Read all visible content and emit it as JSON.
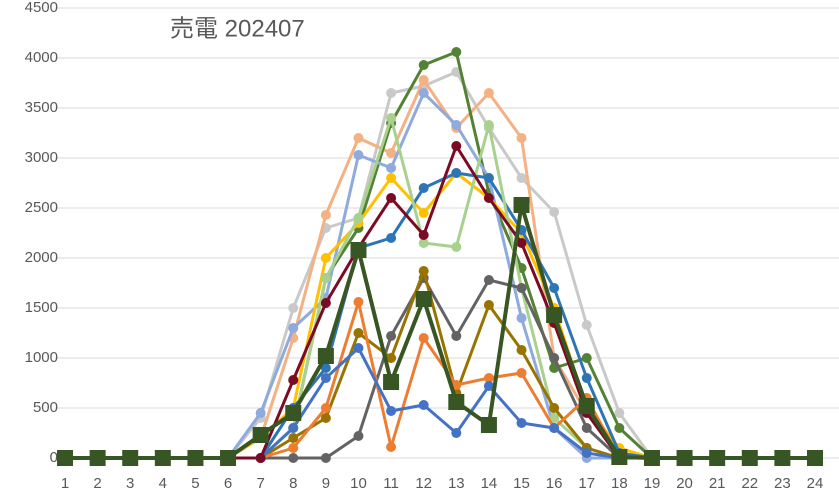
{
  "chart_data": {
    "type": "line",
    "title": "売電 202407",
    "categories": [
      "1",
      "2",
      "3",
      "4",
      "5",
      "6",
      "7",
      "8",
      "9",
      "10",
      "11",
      "12",
      "13",
      "14",
      "15",
      "16",
      "17",
      "18",
      "19",
      "20",
      "21",
      "22",
      "23",
      "24"
    ],
    "ylim": [
      0,
      4500
    ],
    "yticks": [
      0,
      500,
      1000,
      1500,
      2000,
      2500,
      3000,
      3500,
      4000,
      4500
    ],
    "grid": true,
    "series": [
      {
        "color": "#c9c9c9",
        "values": [
          0,
          0,
          0,
          0,
          0,
          0,
          400,
          1500,
          2300,
          2400,
          3650,
          3720,
          3860,
          3300,
          2800,
          2460,
          1330,
          450,
          0,
          0,
          0,
          0,
          0,
          0
        ]
      },
      {
        "color": "#f4b183",
        "values": [
          0,
          0,
          0,
          0,
          0,
          0,
          200,
          1200,
          2430,
          3200,
          3050,
          3780,
          3300,
          3650,
          3200,
          1000,
          450,
          50,
          0,
          0,
          0,
          0,
          0,
          0
        ]
      },
      {
        "color": "#548235",
        "values": [
          0,
          0,
          0,
          0,
          0,
          0,
          0,
          300,
          1800,
          2300,
          3350,
          3930,
          4060,
          2650,
          1900,
          900,
          1000,
          300,
          0,
          0,
          0,
          0,
          0,
          0
        ]
      },
      {
        "color": "#8faadc",
        "values": [
          0,
          0,
          0,
          0,
          0,
          0,
          450,
          1300,
          1600,
          3030,
          2900,
          3650,
          3330,
          2800,
          1400,
          300,
          0,
          0,
          0,
          0,
          0,
          0,
          0,
          0
        ]
      },
      {
        "color": "#ffc000",
        "values": [
          0,
          0,
          0,
          0,
          0,
          0,
          200,
          500,
          2000,
          2350,
          2800,
          2450,
          2850,
          2600,
          2250,
          1500,
          500,
          100,
          0,
          0,
          0,
          0,
          0,
          0
        ]
      },
      {
        "color": "#2e75b6",
        "values": [
          0,
          0,
          0,
          0,
          0,
          0,
          0,
          500,
          900,
          2100,
          2200,
          2700,
          2850,
          2800,
          2280,
          1700,
          800,
          50,
          0,
          0,
          0,
          0,
          0,
          0
        ]
      },
      {
        "color": "#a9d18e",
        "values": [
          0,
          0,
          0,
          0,
          0,
          0,
          0,
          300,
          1800,
          2400,
          3400,
          2150,
          2110,
          3330,
          1700,
          400,
          100,
          0,
          0,
          0,
          0,
          0,
          0,
          0
        ]
      },
      {
        "color": "#636363",
        "values": [
          0,
          0,
          0,
          0,
          0,
          0,
          0,
          0,
          0,
          220,
          1220,
          1800,
          1220,
          1780,
          1700,
          1000,
          300,
          0,
          0,
          0,
          0,
          0,
          0,
          0
        ]
      },
      {
        "color": "#997300",
        "values": [
          0,
          0,
          0,
          0,
          0,
          0,
          0,
          200,
          400,
          1250,
          1000,
          1870,
          650,
          1530,
          1080,
          500,
          100,
          0,
          0,
          0,
          0,
          0,
          0,
          0
        ]
      },
      {
        "color": "#ed7d31",
        "values": [
          0,
          0,
          0,
          0,
          0,
          0,
          0,
          100,
          500,
          1560,
          110,
          1200,
          730,
          800,
          850,
          300,
          600,
          0,
          0,
          0,
          0,
          0,
          0,
          0
        ]
      },
      {
        "color": "#4472c4",
        "values": [
          0,
          0,
          0,
          0,
          0,
          0,
          0,
          300,
          800,
          1100,
          470,
          530,
          250,
          720,
          350,
          300,
          50,
          0,
          0,
          0,
          0,
          0,
          0,
          0
        ]
      },
      {
        "color": "#7b0b25",
        "values": [
          0,
          0,
          0,
          0,
          0,
          0,
          0,
          780,
          1550,
          2100,
          2600,
          2230,
          3120,
          2600,
          2150,
          1350,
          450,
          0,
          0,
          0,
          0,
          0,
          0,
          0
        ]
      },
      {
        "color": "#375623",
        "marker": "square",
        "values": [
          0,
          0,
          0,
          0,
          0,
          0,
          230,
          450,
          1020,
          2080,
          760,
          1590,
          560,
          330,
          2530,
          1430,
          520,
          10,
          0,
          0,
          0,
          0,
          0,
          0
        ]
      }
    ]
  }
}
